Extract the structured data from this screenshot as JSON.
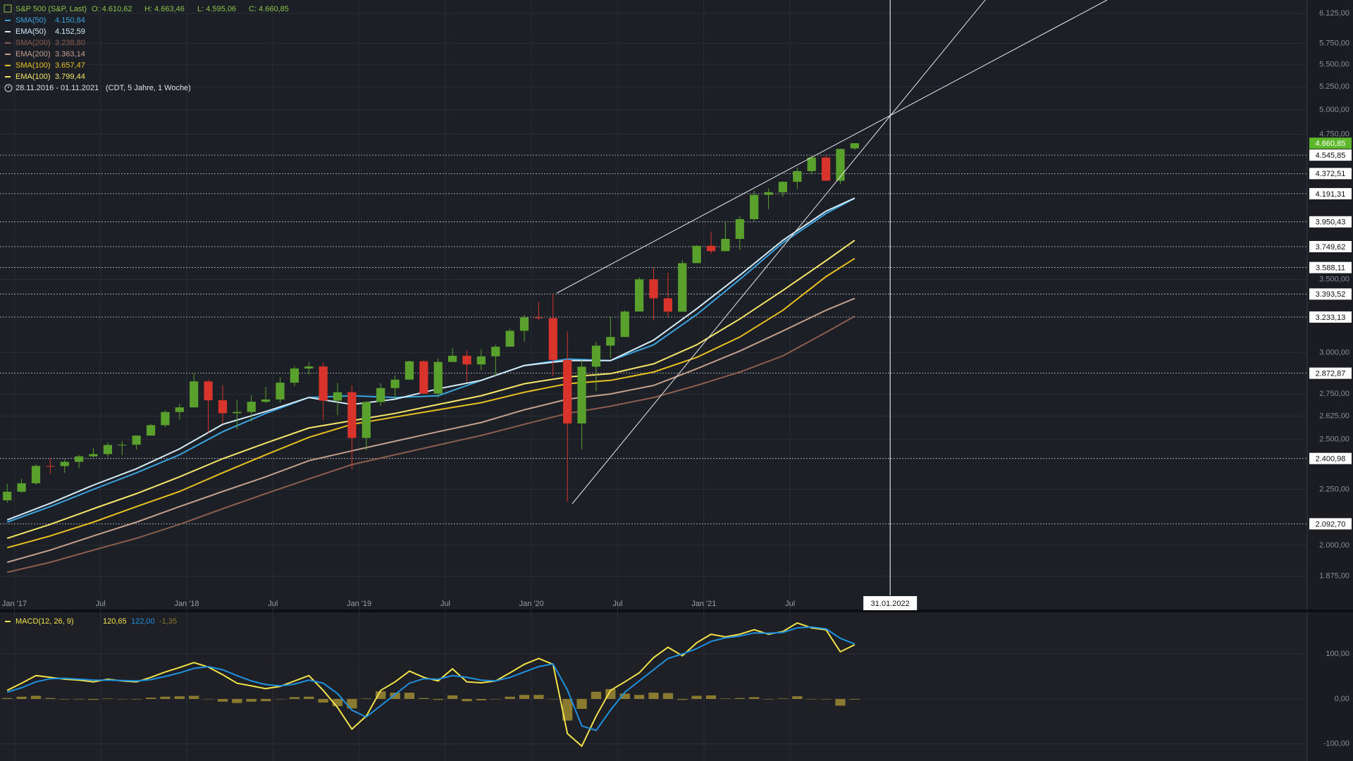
{
  "chart_data": [
    {
      "type": "candlestick",
      "title": "S&P 500 (S&P, Last)",
      "ohlc_header": [
        "O: 4.610,62",
        "H: 4.663,46",
        "L: 4.595,06",
        "C: 4.660,85"
      ],
      "range_text": "28.11.2016 - 01.11.2021",
      "range_note": "(CDT, 5 Jahre, 1 Woche)",
      "up_color": "#5aa02c",
      "down_color": "#d9342b",
      "log_scale": true,
      "grid": true,
      "x": [
        "2016-12",
        "2017-01",
        "2017-02",
        "2017-03",
        "2017-04",
        "2017-05",
        "2017-06",
        "2017-07",
        "2017-08",
        "2017-09",
        "2017-10",
        "2017-11",
        "2017-12",
        "2018-01",
        "2018-02",
        "2018-03",
        "2018-04",
        "2018-05",
        "2018-06",
        "2018-07",
        "2018-08",
        "2018-09",
        "2018-10",
        "2018-11",
        "2018-12",
        "2019-01",
        "2019-02",
        "2019-03",
        "2019-04",
        "2019-05",
        "2019-06",
        "2019-07",
        "2019-08",
        "2019-09",
        "2019-10",
        "2019-11",
        "2019-12",
        "2020-01",
        "2020-02",
        "2020-03",
        "2020-04",
        "2020-05",
        "2020-06",
        "2020-07",
        "2020-08",
        "2020-09",
        "2020-10",
        "2020-11",
        "2020-12",
        "2021-01",
        "2021-02",
        "2021-03",
        "2021-04",
        "2021-05",
        "2021-06",
        "2021-07",
        "2021-08",
        "2021-09",
        "2021-10",
        "2021-11"
      ],
      "open": [
        2198.8,
        2238.8,
        2278.9,
        2363.6,
        2362.7,
        2384.2,
        2411.8,
        2423.4,
        2470.3,
        2471.7,
        2519.4,
        2575.3,
        2647.6,
        2673.6,
        2823.8,
        2713.8,
        2640.9,
        2648.1,
        2705.3,
        2718.4,
        2816.3,
        2901.5,
        2914.0,
        2711.7,
        2760.2,
        2506.9,
        2704.1,
        2784.5,
        2834.4,
        2945.8,
        2752.1,
        2941.8,
        2980.4,
        2926.5,
        2976.7,
        3037.6,
        3141.0,
        3230.8,
        3225.5,
        2954.2,
        2584.6,
        2912.4,
        3044.3,
        3100.3,
        3271.1,
        3500.3,
        3363.0,
        3270.0,
        3621.6,
        3756.1,
        3714.2,
        3811.2,
        3972.9,
        4181.2,
        4204.1,
        4297.5,
        4395.3,
        4522.7,
        4307.5,
        4610.62
      ],
      "high": [
        2277.5,
        2300.9,
        2371.5,
        2400.98,
        2398.2,
        2418.7,
        2453.8,
        2484.0,
        2490.9,
        2519.4,
        2582.98,
        2657.7,
        2694.97,
        2872.87,
        2835.96,
        2801.9,
        2717.5,
        2742.2,
        2791.5,
        2848.0,
        2916.5,
        2940.9,
        2939.9,
        2815.2,
        2800.2,
        2708.95,
        2813.5,
        2860.3,
        2949.5,
        2954.1,
        2964.2,
        3027.98,
        3013.6,
        3021.99,
        3050.1,
        3154.3,
        3247.9,
        3337.8,
        3393.52,
        3136.7,
        2954.9,
        3068.7,
        3233.13,
        3279.99,
        3514.8,
        3588.11,
        3549.9,
        3645.99,
        3760.2,
        3870.9,
        3950.43,
        3994.4,
        4218.8,
        4238.0,
        4302.4,
        4429.97,
        4537.4,
        4545.85,
        4608.1,
        4663.46
      ],
      "low": [
        2187.9,
        2233.6,
        2271.7,
        2322.3,
        2328.9,
        2352.7,
        2405.7,
        2407.7,
        2417.4,
        2446.6,
        2520.4,
        2566.3,
        2605.5,
        2682.4,
        2532.7,
        2585.9,
        2553.8,
        2594.6,
        2698.7,
        2698.95,
        2796.3,
        2864.1,
        2603.5,
        2631.1,
        2346.6,
        2443.96,
        2681.8,
        2722.3,
        2848.6,
        2750.5,
        2728.8,
        2952.2,
        2822.1,
        2891.9,
        2855.9,
        3050.7,
        3070.3,
        3214.6,
        2855.8,
        2191.9,
        2447.5,
        2766.6,
        2965.7,
        3101.2,
        3284.5,
        3209.5,
        3233.9,
        3279.7,
        3633.4,
        3694.1,
        3725.6,
        3723.3,
        3955.5,
        4056.9,
        4164.4,
        4233.1,
        4367.7,
        4305.9,
        4278.9,
        4595.06
      ],
      "close": [
        2238.8,
        2278.9,
        2363.6,
        2362.7,
        2384.2,
        2411.8,
        2423.4,
        2470.3,
        2471.7,
        2519.4,
        2575.3,
        2647.6,
        2673.6,
        2823.8,
        2713.8,
        2640.9,
        2648.1,
        2705.3,
        2718.4,
        2816.3,
        2901.5,
        2914.0,
        2711.7,
        2760.2,
        2506.9,
        2704.1,
        2784.5,
        2834.4,
        2945.8,
        2752.1,
        2941.8,
        2980.4,
        2926.5,
        2976.7,
        3037.6,
        3141.0,
        3230.8,
        3225.5,
        2954.2,
        2584.6,
        2912.4,
        3044.3,
        3100.3,
        3271.1,
        3500.3,
        3363.0,
        3270.0,
        3621.6,
        3756.1,
        3714.2,
        3811.2,
        3972.9,
        4181.2,
        4204.1,
        4297.5,
        4395.3,
        4522.7,
        4307.5,
        4605.4,
        4660.85
      ],
      "xlim": [
        "2016-12",
        "2024-07"
      ],
      "xticks": [
        {
          "value": "2017-01",
          "label": "Jan '17"
        },
        {
          "value": "2017-07",
          "label": "Jul"
        },
        {
          "value": "2018-01",
          "label": "Jan '18"
        },
        {
          "value": "2018-07",
          "label": "Jul"
        },
        {
          "value": "2019-01",
          "label": "Jan '19"
        },
        {
          "value": "2019-07",
          "label": "Jul"
        },
        {
          "value": "2020-01",
          "label": "Jan '20"
        },
        {
          "value": "2020-07",
          "label": "Jul"
        },
        {
          "value": "2021-01",
          "label": "Jan '21"
        },
        {
          "value": "2021-07",
          "label": "Jul"
        }
      ],
      "ylim": [
        1800,
        6300
      ],
      "yticks": [
        {
          "value": 1875,
          "label": "1.875,00"
        },
        {
          "value": 2000,
          "label": "2.000,00"
        },
        {
          "value": 2250,
          "label": "2.250,00"
        },
        {
          "value": 2500,
          "label": "2.500,00"
        },
        {
          "value": 2625,
          "label": "2.625,00"
        },
        {
          "value": 2750,
          "label": "2.750,00"
        },
        {
          "value": 3000,
          "label": "3.000,00"
        },
        {
          "value": 3500,
          "label": "3.500,00"
        },
        {
          "value": 4750,
          "label": "4.750,00"
        },
        {
          "value": 5000,
          "label": "5.000,00"
        },
        {
          "value": 5250,
          "label": "5.250,00"
        },
        {
          "value": 5500,
          "label": "5.500,00"
        },
        {
          "value": 5750,
          "label": "5.750,00"
        },
        {
          "value": 6125,
          "label": "6.125,00"
        }
      ],
      "overlay_x": [
        "2016-12",
        "2017-03",
        "2017-06",
        "2017-09",
        "2017-12",
        "2018-03",
        "2018-06",
        "2018-09",
        "2018-12",
        "2019-03",
        "2019-06",
        "2019-09",
        "2019-12",
        "2020-03",
        "2020-06",
        "2020-09",
        "2020-12",
        "2021-03",
        "2021-06",
        "2021-09",
        "2021-11"
      ],
      "overlays": [
        {
          "name": "SMA(50)",
          "legend_value": "4.150,84",
          "color": "#3aa3e0",
          "values": [
            2100,
            2170,
            2250,
            2330,
            2420,
            2540,
            2640,
            2730,
            2740,
            2730,
            2740,
            2830,
            2920,
            2960,
            2950,
            3050,
            3250,
            3500,
            3780,
            4020,
            4150.84
          ]
        },
        {
          "name": "EMA(50)",
          "legend_value": "4.152,59",
          "color": "#d4ecf7",
          "values": [
            2110,
            2185,
            2270,
            2350,
            2450,
            2580,
            2650,
            2730,
            2690,
            2720,
            2780,
            2830,
            2920,
            2950,
            2950,
            3080,
            3290,
            3530,
            3800,
            4040,
            4152.59
          ]
        },
        {
          "name": "SMA(200)",
          "legend_value": "3.238,80",
          "color": "#8b5e50",
          "values": [
            1890,
            1930,
            1980,
            2030,
            2090,
            2160,
            2230,
            2300,
            2370,
            2420,
            2470,
            2520,
            2580,
            2640,
            2680,
            2730,
            2800,
            2880,
            2980,
            3130,
            3238.8
          ]
        },
        {
          "name": "EMA(200)",
          "legend_value": "3.363,14",
          "color": "#c4a08e",
          "values": [
            1930,
            1980,
            2040,
            2100,
            2170,
            2240,
            2310,
            2390,
            2440,
            2490,
            2540,
            2590,
            2660,
            2720,
            2750,
            2800,
            2900,
            3010,
            3140,
            3280,
            3363.14
          ]
        },
        {
          "name": "SMA(100)",
          "legend_value": "3.657,47",
          "color": "#e8c020",
          "values": [
            1990,
            2040,
            2100,
            2170,
            2240,
            2330,
            2420,
            2510,
            2580,
            2620,
            2660,
            2700,
            2760,
            2810,
            2830,
            2880,
            2970,
            3100,
            3280,
            3520,
            3657.47
          ]
        },
        {
          "name": "EMA(100)",
          "legend_value": "3.799,44",
          "color": "#f5e66a",
          "values": [
            2030,
            2090,
            2160,
            2230,
            2310,
            2400,
            2480,
            2560,
            2600,
            2640,
            2690,
            2740,
            2810,
            2850,
            2870,
            2930,
            3050,
            3220,
            3420,
            3640,
            3799.44
          ]
        }
      ],
      "levels": [
        {
          "value": 4545.85,
          "label": "4.545,85"
        },
        {
          "value": 4372.51,
          "label": "4.372,51"
        },
        {
          "value": 4191.31,
          "label": "4.191,31"
        },
        {
          "value": 3950.43,
          "label": "3.950,43"
        },
        {
          "value": 3749.62,
          "label": "3.749,62"
        },
        {
          "value": 3588.11,
          "label": "3.588,11"
        },
        {
          "value": 3393.52,
          "label": "3.393,52"
        },
        {
          "value": 3233.13,
          "label": "3.233,13"
        },
        {
          "value": 2872.87,
          "label": "2.872,87"
        },
        {
          "value": 2400.98,
          "label": "2.400,98"
        },
        {
          "value": 2092.7,
          "label": "2.092,70"
        }
      ],
      "last_price": {
        "value": 4660.85,
        "label": "4.660,85",
        "color": "#5cb82a"
      },
      "marker": {
        "value": "2022-01-31",
        "label": "31.01.2022"
      }
    },
    {
      "type": "macd",
      "x": [
        "2016-12",
        "2017-01",
        "2017-02",
        "2017-03",
        "2017-04",
        "2017-05",
        "2017-06",
        "2017-07",
        "2017-08",
        "2017-09",
        "2017-10",
        "2017-11",
        "2017-12",
        "2018-01",
        "2018-02",
        "2018-03",
        "2018-04",
        "2018-05",
        "2018-06",
        "2018-07",
        "2018-08",
        "2018-09",
        "2018-10",
        "2018-11",
        "2018-12",
        "2019-01",
        "2019-02",
        "2019-03",
        "2019-04",
        "2019-05",
        "2019-06",
        "2019-07",
        "2019-08",
        "2019-09",
        "2019-10",
        "2019-11",
        "2019-12",
        "2020-01",
        "2020-02",
        "2020-03",
        "2020-04",
        "2020-05",
        "2020-06",
        "2020-07",
        "2020-08",
        "2020-09",
        "2020-10",
        "2020-11",
        "2020-12",
        "2021-01",
        "2021-02",
        "2021-03",
        "2021-04",
        "2021-05",
        "2021-06",
        "2021-07",
        "2021-08",
        "2021-09",
        "2021-10",
        "2021-11"
      ],
      "xlim": [
        "2016-12",
        "2024-07"
      ],
      "ylim": [
        -138,
        188
      ],
      "yticks": [
        {
          "value": 100,
          "label": "100,00"
        },
        {
          "value": 0,
          "label": "0,00"
        },
        {
          "value": -100,
          "label": "-100,00"
        }
      ],
      "series": [
        {
          "name": "MACD(12, 26, 9)",
          "legend_value": "120,65",
          "color": "#f2e24a",
          "kind": "line",
          "values": [
            19,
            35,
            52,
            48,
            44,
            42,
            38,
            44,
            40,
            38,
            48,
            60,
            70,
            81,
            71,
            54,
            35,
            29,
            23,
            28,
            40,
            52,
            19,
            -19,
            -67,
            -38,
            19,
            38,
            62,
            48,
            40,
            67,
            38,
            36,
            40,
            58,
            77,
            90,
            77,
            -77,
            -105,
            -38,
            19,
            38,
            58,
            92,
            115,
            96,
            125,
            144,
            138,
            144,
            154,
            144,
            150,
            169,
            158,
            154,
            105,
            120.65
          ]
        },
        {
          "legend_value": "122,00",
          "color": "#1e90e0",
          "kind": "line",
          "values": [
            15,
            25,
            38,
            45,
            46,
            44,
            42,
            42,
            41,
            40,
            43,
            50,
            58,
            68,
            72,
            65,
            52,
            40,
            32,
            29,
            33,
            42,
            35,
            12,
            -25,
            -40,
            -15,
            10,
            35,
            45,
            44,
            52,
            48,
            42,
            40,
            48,
            60,
            72,
            78,
            20,
            -60,
            -70,
            -25,
            15,
            40,
            65,
            90,
            100,
            112,
            128,
            136,
            140,
            147,
            146,
            148,
            158,
            160,
            156,
            135,
            122.0
          ]
        },
        {
          "legend_value": "-1,35",
          "color": "#8a7a30",
          "kind": "histogram",
          "values": [
            2,
            5,
            7,
            2,
            -1,
            -1,
            -2,
            1,
            0,
            -1,
            3,
            5,
            6,
            7,
            0,
            -6,
            -9,
            -6,
            -5,
            0,
            4,
            5,
            -8,
            -16,
            -21,
            1,
            17,
            14,
            14,
            2,
            -2,
            8,
            -5,
            -3,
            0,
            5,
            9,
            9,
            0,
            -48,
            -22,
            16,
            22,
            12,
            9,
            14,
            13,
            -2,
            7,
            8,
            1,
            2,
            4,
            -1,
            1,
            6,
            -1,
            -1,
            -15,
            -1.35
          ]
        }
      ]
    }
  ]
}
